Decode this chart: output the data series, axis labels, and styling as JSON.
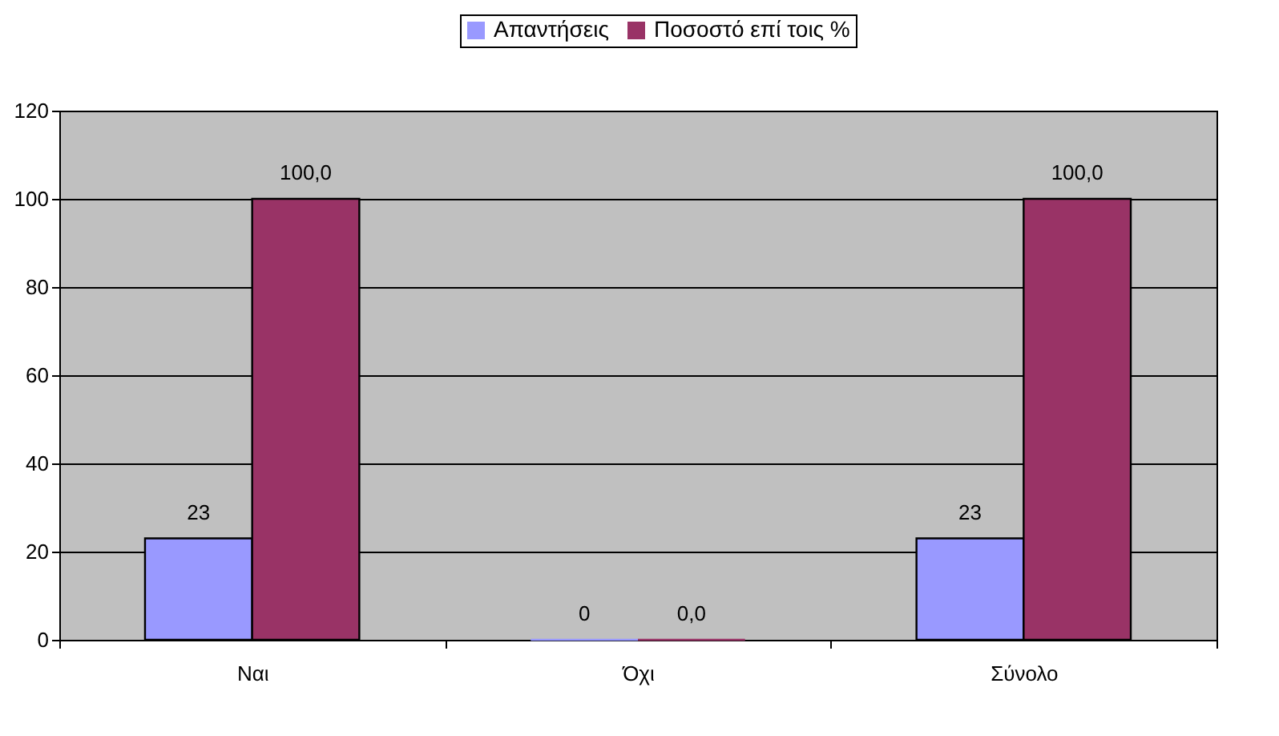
{
  "chart_data": {
    "type": "bar",
    "categories": [
      "Ναι",
      "Όχι",
      "Σύνολο"
    ],
    "series": [
      {
        "name": "Απαντήσεις",
        "color": "#9999ff",
        "values": [
          23,
          0,
          23
        ],
        "value_labels": [
          "23",
          "0",
          "23"
        ]
      },
      {
        "name": "Ποσοστό επί τοις %",
        "color": "#993366",
        "values": [
          100,
          0,
          100
        ],
        "value_labels": [
          "100,0",
          "0,0",
          "100,0"
        ]
      }
    ],
    "ylim": [
      0,
      120
    ],
    "yticks": [
      0,
      20,
      40,
      60,
      80,
      100,
      120
    ],
    "grid": "y",
    "legend": "top"
  }
}
